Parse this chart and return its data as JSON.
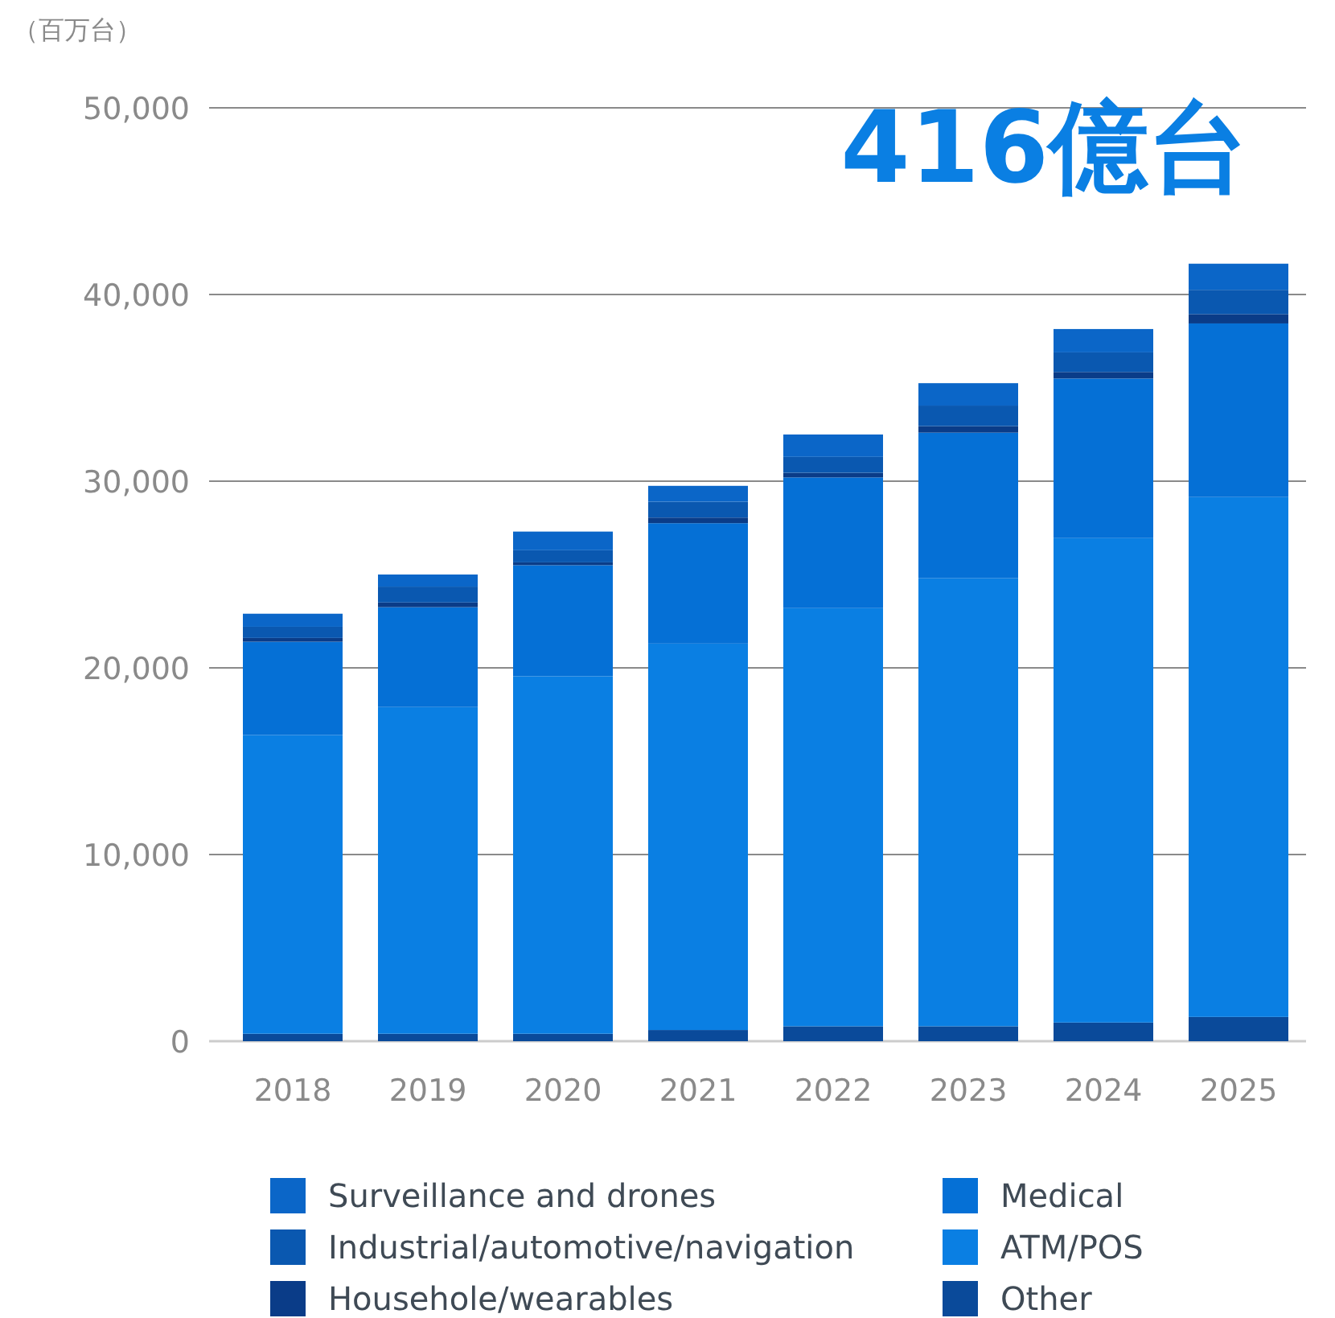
{
  "chart_data": {
    "type": "bar",
    "stacked": true,
    "title": "416億台",
    "ylabel": "（百万台）",
    "categories": [
      "2018",
      "2019",
      "2020",
      "2021",
      "2022",
      "2023",
      "2024",
      "2025"
    ],
    "series": [
      {
        "name": "Other",
        "color": "#0a4a9a",
        "values": [
          400,
          400,
          400,
          600,
          800,
          800,
          1000,
          1300
        ]
      },
      {
        "name": "ATM/POS",
        "color": "#0a7fe3",
        "values": [
          16000,
          17500,
          19150,
          20700,
          22400,
          24000,
          25950,
          27850
        ]
      },
      {
        "name": "Medical",
        "color": "#0570d6",
        "values": [
          5000,
          5350,
          5950,
          6450,
          7000,
          7800,
          8550,
          9300
        ]
      },
      {
        "name": "Househole/wearables",
        "color": "#0a3c88",
        "values": [
          200,
          250,
          150,
          300,
          250,
          350,
          350,
          500
        ]
      },
      {
        "name": "Industrial/automotive/navigation",
        "color": "#0a58b0",
        "values": [
          600,
          850,
          650,
          850,
          850,
          1100,
          1050,
          1300
        ]
      },
      {
        "name": "Surveillance and drones",
        "color": "#0b66c8",
        "values": [
          700,
          650,
          1000,
          850,
          1200,
          1200,
          1250,
          1400
        ]
      }
    ],
    "ylim": [
      0,
      50000
    ],
    "yticks": [
      0,
      {
        "value": 10000,
        "label": "10,000"
      },
      {
        "value": 20000,
        "label": "20,000"
      },
      {
        "value": 30000,
        "label": "30,000"
      },
      {
        "value": 40000,
        "label": "40,000"
      },
      {
        "value": 50000,
        "label": "50,000"
      }
    ],
    "grid": "y",
    "legend": "bottom"
  }
}
